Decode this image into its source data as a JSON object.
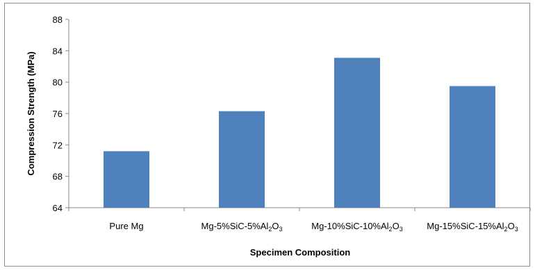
{
  "chart_data": {
    "type": "bar",
    "categories": [
      "Pure Mg",
      "Mg-5%SiC-5%Al2O3",
      "Mg-10%SiC-10%Al2O3",
      "Mg-15%SiC-15%Al2O3"
    ],
    "category_labels": [
      [
        {
          "t": "Pure Mg",
          "sub": false
        }
      ],
      [
        {
          "t": "Mg-5%SiC-5%Al",
          "sub": false
        },
        {
          "t": "2",
          "sub": true
        },
        {
          "t": "O",
          "sub": false
        },
        {
          "t": "3",
          "sub": true
        }
      ],
      [
        {
          "t": "Mg-10%SiC-10%Al",
          "sub": false
        },
        {
          "t": "2",
          "sub": true
        },
        {
          "t": "O",
          "sub": false
        },
        {
          "t": "3",
          "sub": true
        }
      ],
      [
        {
          "t": "Mg-15%SiC-15%Al",
          "sub": false
        },
        {
          "t": "2",
          "sub": true
        },
        {
          "t": "O",
          "sub": false
        },
        {
          "t": "3",
          "sub": true
        }
      ]
    ],
    "values": [
      71.2,
      76.3,
      83.1,
      79.5
    ],
    "ylabel": "Compression Strength (MPa)",
    "xlabel": "Specimen Composition",
    "ylim": [
      64,
      88
    ],
    "yticks": [
      64,
      68,
      72,
      76,
      80,
      84,
      88
    ],
    "bar_color": "#4f81bd",
    "grid": false,
    "legend": "none"
  }
}
